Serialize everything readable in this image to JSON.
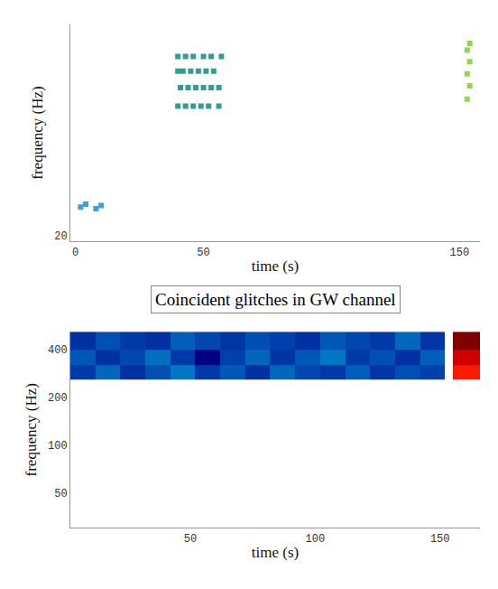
{
  "chart_data": [
    {
      "type": "scatter",
      "x_label": "time (s)",
      "y_label": "frequency (Hz)",
      "log": "y",
      "grid": false,
      "xlim": [
        -2,
        158
      ],
      "xticks": [
        0,
        50,
        150
      ],
      "ylim": [
        18,
        1000
      ],
      "yticks": [
        20
      ],
      "marker": "square",
      "series": [
        {
          "color": "#3f9fd8",
          "x": [
            2,
            4,
            8,
            10
          ],
          "values": [
            34,
            36,
            33,
            35
          ]
        },
        {
          "color": "#2f9f8e",
          "x": [
            40,
            43,
            46,
            50,
            53,
            57,
            40,
            42,
            45,
            48,
            51,
            54,
            41,
            44,
            47,
            50,
            53,
            56,
            40,
            43,
            46,
            49,
            52,
            56
          ],
          "values": [
            550,
            550,
            550,
            550,
            550,
            550,
            420,
            420,
            420,
            420,
            420,
            420,
            310,
            310,
            310,
            310,
            310,
            310,
            220,
            220,
            220,
            220,
            220,
            220
          ]
        },
        {
          "color": "#8ed84a",
          "x": [
            153,
            154,
            153,
            154,
            153,
            154
          ],
          "values": [
            250,
            320,
            400,
            500,
            620,
            700
          ]
        }
      ]
    },
    {
      "type": "heatmap",
      "title": "Coincident glitches in GW channel",
      "x_label": "time (s)",
      "y_label": "frequency (Hz)",
      "log": "y",
      "grid": false,
      "xlim": [
        2,
        166
      ],
      "xticks": [
        50,
        100,
        150
      ],
      "ylim": [
        30,
        520
      ],
      "yticks": [
        50,
        100,
        200,
        400
      ],
      "x_edges": [
        2,
        12,
        22,
        32,
        42,
        52,
        62,
        72,
        82,
        92,
        102,
        112,
        122,
        132,
        142,
        152,
        155,
        166
      ],
      "y_edges": [
        260,
        320,
        400,
        520
      ],
      "z": [
        [
          0.12,
          0.18,
          0.1,
          0.15,
          0.2,
          0.12,
          0.16,
          0.1,
          0.18,
          0.14,
          0.12,
          0.17,
          0.11,
          0.15,
          0.13,
          null,
          0.85
        ],
        [
          0.16,
          0.1,
          0.14,
          0.19,
          0.12,
          0.0,
          0.13,
          0.18,
          0.11,
          0.16,
          0.2,
          0.12,
          0.15,
          0.1,
          0.17,
          null,
          0.92
        ],
        [
          0.1,
          0.15,
          0.12,
          0.1,
          0.17,
          0.14,
          0.11,
          0.15,
          0.13,
          0.1,
          0.16,
          0.14,
          0.12,
          0.18,
          0.11,
          null,
          1
        ]
      ]
    }
  ]
}
